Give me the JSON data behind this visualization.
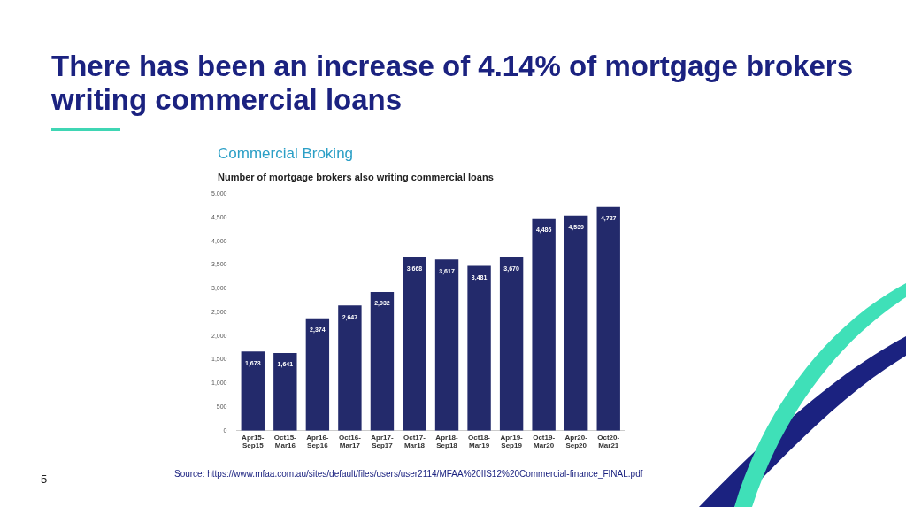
{
  "chart_data": {
    "type": "bar",
    "title": "There has been an increase of 4.14% of mortgage brokers writing commercial loans",
    "subtitle": "Commercial Broking",
    "ylabel": "Number of mortgage brokers also writing commercial loans",
    "categories": [
      "Apr15-Sep15",
      "Oct15-Mar16",
      "Apr16-Sep16",
      "Oct16-Mar17",
      "Apr17-Sep17",
      "Oct17-Mar18",
      "Apr18-Sep18",
      "Oct18-Mar19",
      "Apr19-Sep19",
      "Oct19-Mar20",
      "Apr20-Sep20",
      "Oct20-Mar21"
    ],
    "values": [
      1673,
      1641,
      2374,
      2647,
      2932,
      3668,
      3617,
      3481,
      3670,
      4486,
      4539,
      4727
    ],
    "value_labels": [
      "1,673",
      "1,641",
      "2,374",
      "2,647",
      "2,932",
      "3,668",
      "3,617",
      "3,481",
      "3,670",
      "4,486",
      "4,539",
      "4,727"
    ],
    "color": "#232a6b",
    "ylim": [
      0,
      5000
    ],
    "yticks": [
      {
        "value": 0,
        "label": "0"
      },
      {
        "value": 500,
        "label": "500"
      },
      {
        "value": 1000,
        "label": "1,000"
      },
      {
        "value": 1500,
        "label": "1,500"
      },
      {
        "value": 2000,
        "label": "2,000"
      },
      {
        "value": 2500,
        "label": "2,500"
      },
      {
        "value": 3000,
        "label": "3,000"
      },
      {
        "value": 3500,
        "label": "3,500"
      },
      {
        "value": 4000,
        "label": "4,000"
      },
      {
        "value": 4500,
        "label": "4,500"
      },
      {
        "value": 5000,
        "label": "5,000"
      }
    ],
    "grid": false,
    "legend": false,
    "annotations": [
      "Source: https://www.mfaa.com.au/sites/default/files/users/user2114/MFAA%20IIS12%20Commercial-finance_FINAL.pdf",
      "5"
    ]
  }
}
